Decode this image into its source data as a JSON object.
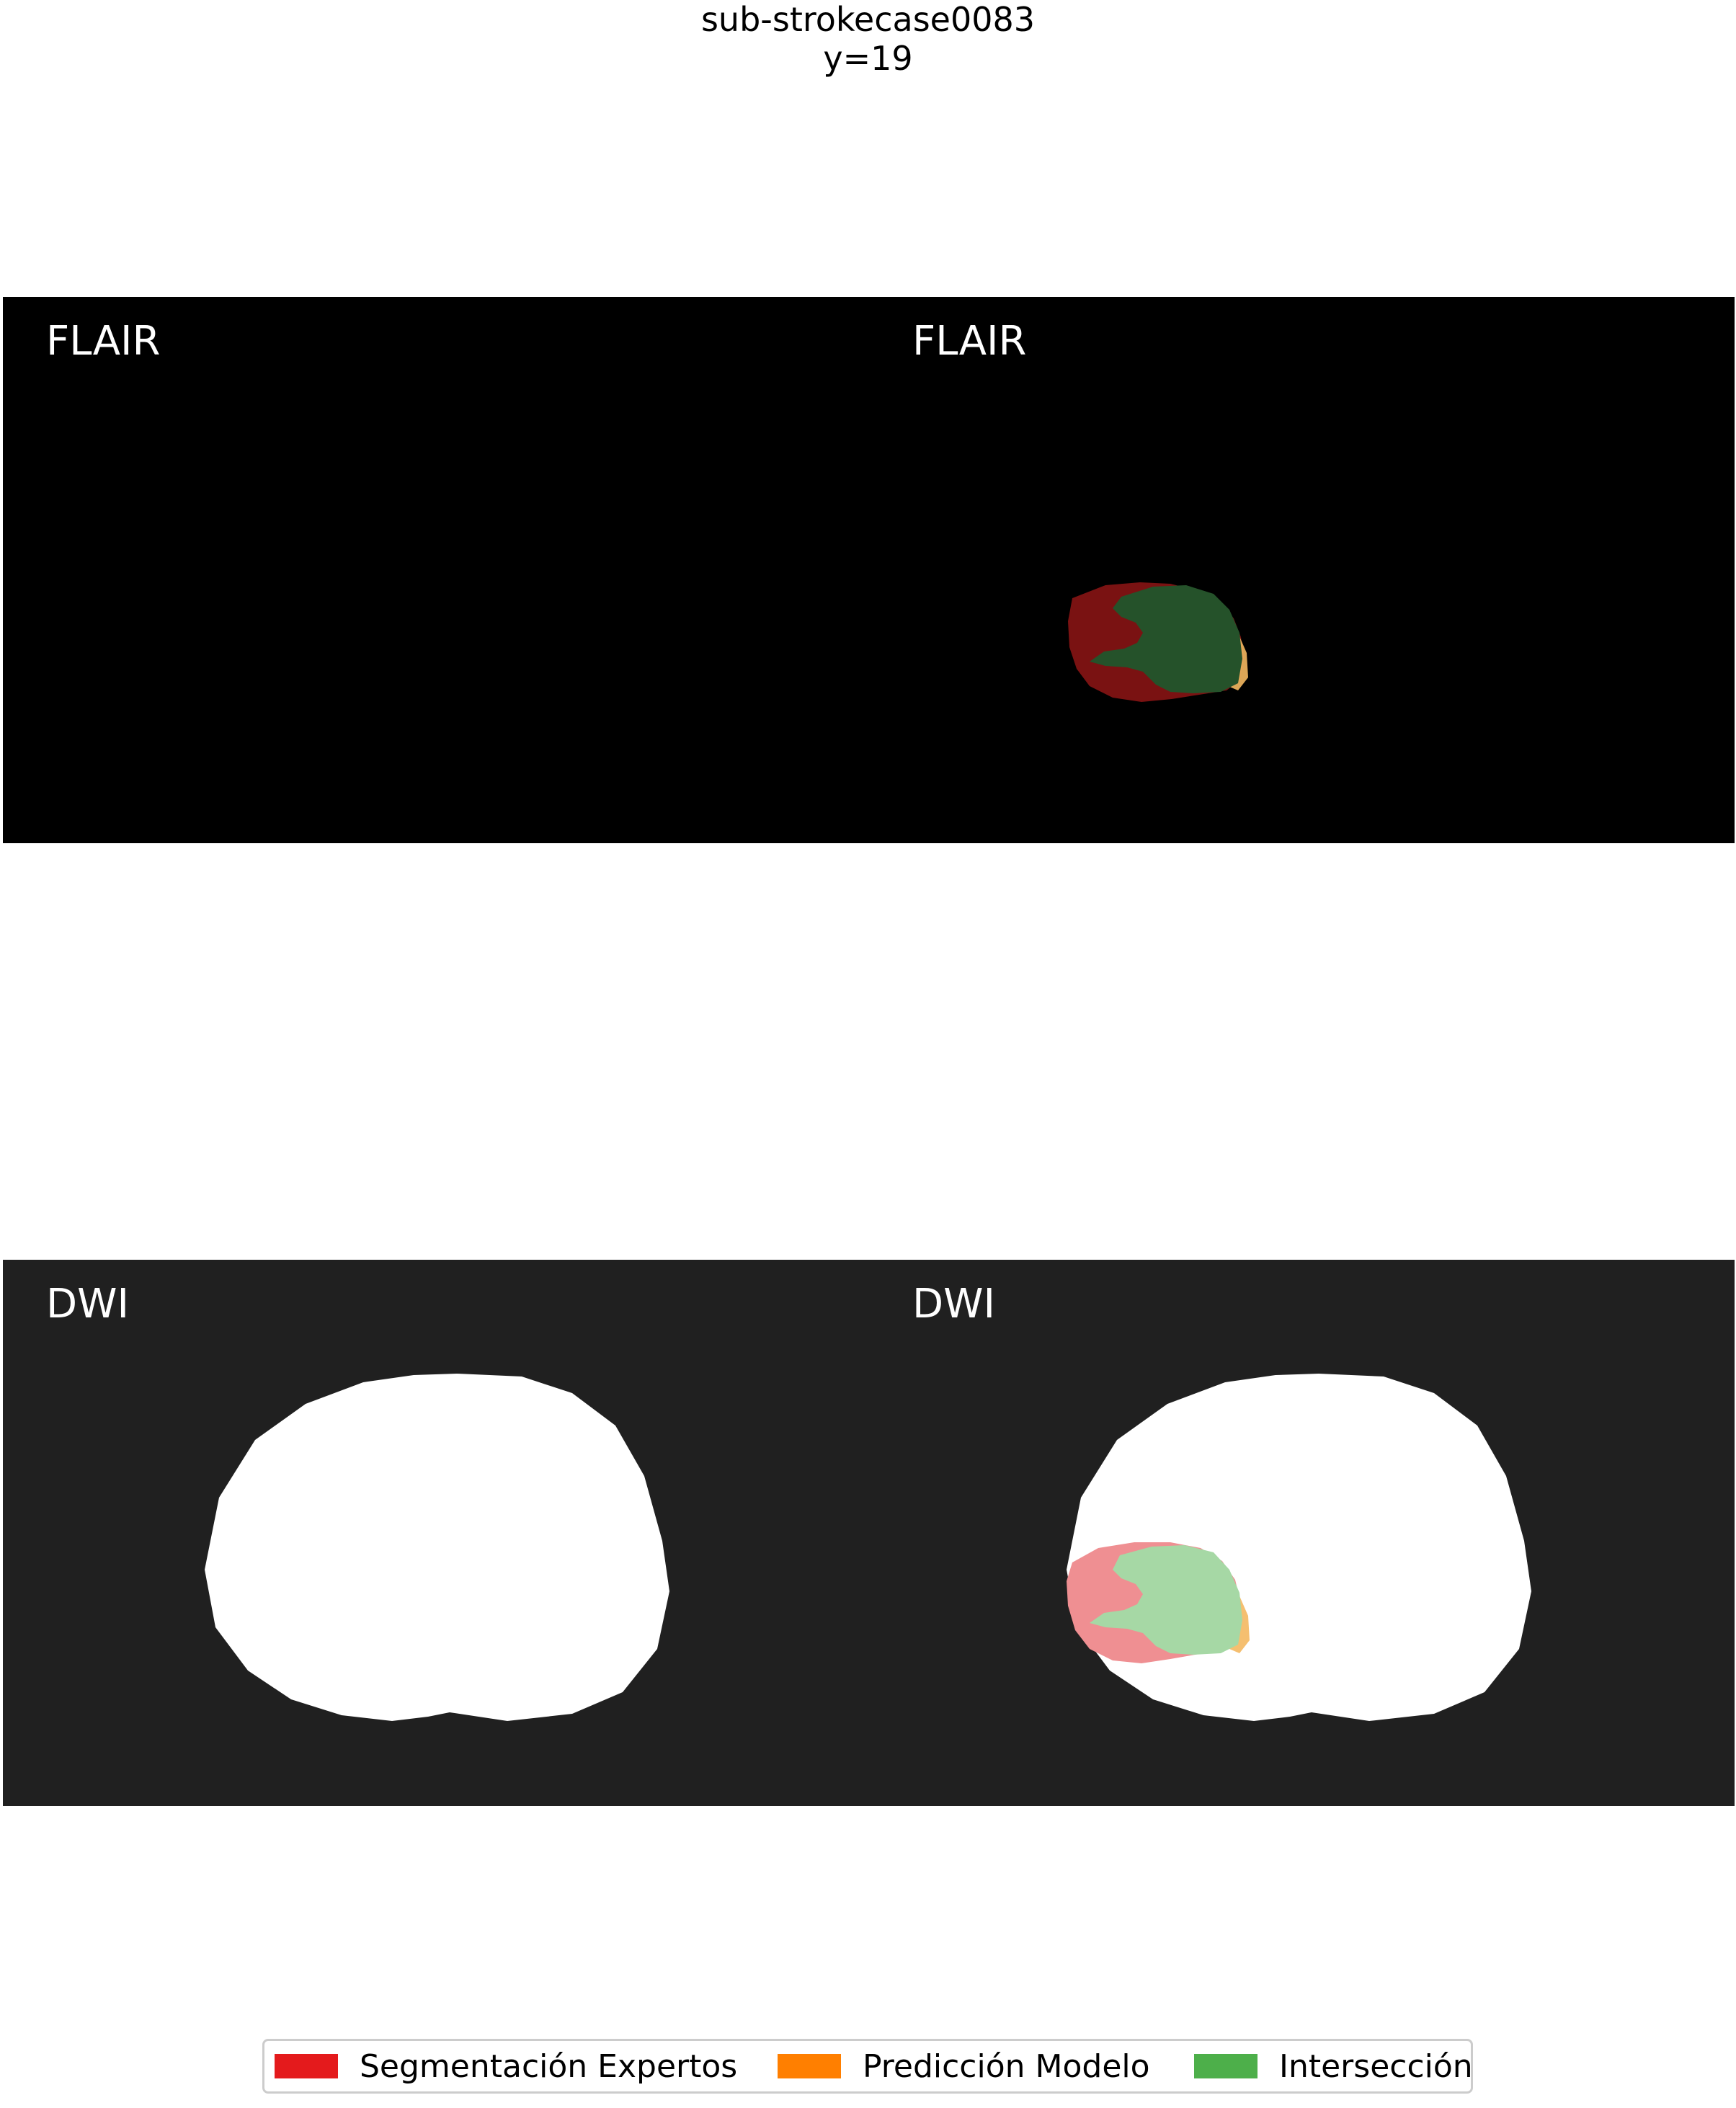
{
  "figure": {
    "title_line1": "sub-strokecase0083",
    "title_line2": "y=19"
  },
  "panels": {
    "flair": {
      "left_label": "FLAIR",
      "right_label": "FLAIR",
      "background": "#000000"
    },
    "dwi": {
      "left_label": "DWI",
      "right_label": "DWI",
      "background": "#202020",
      "brain_color": "#ffffff"
    }
  },
  "legend": {
    "items": [
      {
        "label": "Segmentación Expertos",
        "color": "#e41a1c"
      },
      {
        "label": "Predicción Modelo",
        "color": "#ff7f00"
      },
      {
        "label": "Intersección",
        "color": "#4daf4a"
      }
    ]
  },
  "overlay_colors": {
    "flair_expert": "#7a1212",
    "flair_intersection": "#25522a",
    "dwi_expert": "#ef8f92",
    "dwi_intersection": "#a6d8a5",
    "model_edge": "#f4b860"
  }
}
